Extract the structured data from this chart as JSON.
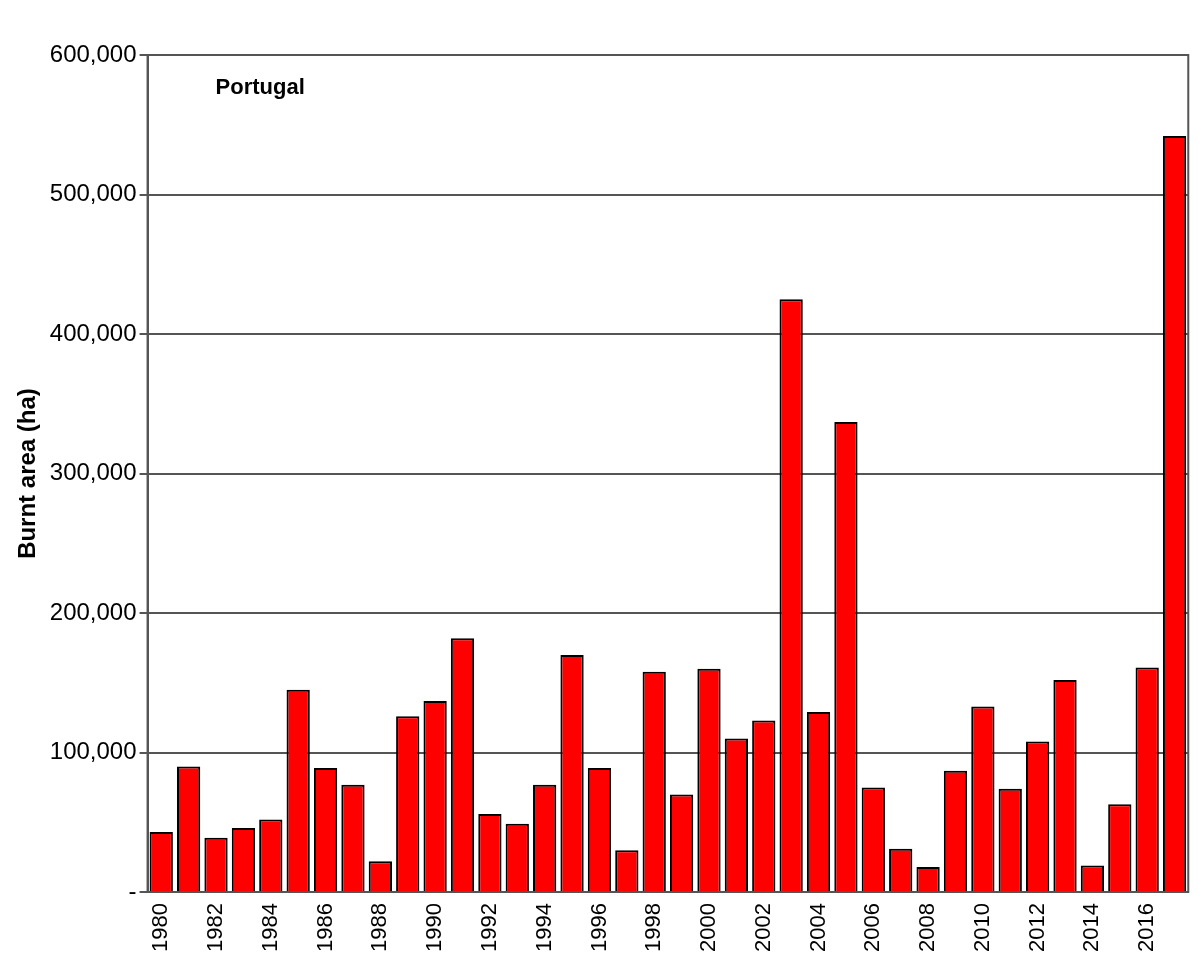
{
  "chart_data": {
    "type": "bar",
    "ylabel": "Burnt area (ha)",
    "annotations": [
      "Portugal"
    ],
    "categories": [
      "1980",
      null,
      "1982",
      null,
      "1984",
      null,
      "1986",
      null,
      "1988",
      null,
      "1990",
      null,
      "1992",
      null,
      "1994",
      null,
      "1996",
      null,
      "1998",
      null,
      "2000",
      null,
      "2002",
      null,
      "2004",
      null,
      "2006",
      null,
      "2008",
      null,
      "2010",
      null,
      "2012",
      null,
      "2014",
      null,
      "2016",
      null
    ],
    "values": [
      43000,
      90000,
      39000,
      46000,
      52000,
      145000,
      89000,
      77000,
      22000,
      126000,
      137000,
      182000,
      56000,
      49000,
      77000,
      170000,
      89000,
      30000,
      158000,
      70000,
      160000,
      110000,
      123000,
      425000,
      129000,
      337000,
      75000,
      31000,
      18000,
      87000,
      133000,
      74000,
      108000,
      152000,
      19000,
      63000,
      161000,
      542000
    ],
    "color": "#ff0000",
    "ylim": [
      0,
      600000
    ],
    "yticks": [
      {
        "value": 0,
        "label": "-"
      },
      {
        "value": 100000,
        "label": "100,000"
      },
      {
        "value": 200000,
        "label": "200,000"
      },
      {
        "value": 300000,
        "label": "300,000"
      },
      {
        "value": 400000,
        "label": "400,000"
      },
      {
        "value": 500000,
        "label": "500,000"
      },
      {
        "value": 600000,
        "label": "600,000"
      }
    ],
    "grid": "y",
    "legend": false
  }
}
